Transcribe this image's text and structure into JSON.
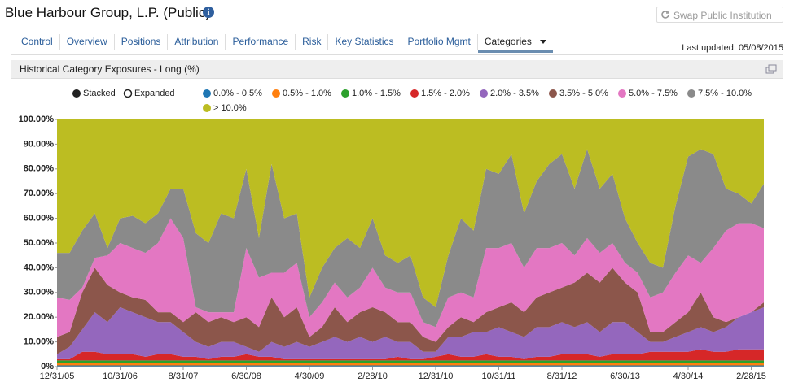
{
  "header": {
    "title": "Blue Harbour Group, L.P. (Public)",
    "button": "Swap Public Institution",
    "last_updated": "Last updated: 05/08/2015"
  },
  "tabs": [
    "Control",
    "Overview",
    "Positions",
    "Attribution",
    "Performance",
    "Risk",
    "Key Statistics",
    "Portfolio Mgmt",
    "Categories"
  ],
  "panel_title": "Historical Category Exposures - Long (%)",
  "chart_modes": [
    "Stacked",
    "Expanded"
  ],
  "chart_data": {
    "type": "stacked_area",
    "categories": [
      "12/31/05",
      null,
      null,
      null,
      null,
      "10/31/06",
      null,
      null,
      null,
      null,
      "8/31/07",
      null,
      null,
      null,
      null,
      "6/30/08",
      null,
      null,
      null,
      null,
      "4/30/09",
      null,
      null,
      null,
      null,
      "2/28/10",
      null,
      null,
      null,
      null,
      "12/31/10",
      null,
      null,
      null,
      null,
      "10/31/11",
      null,
      null,
      null,
      null,
      "8/31/12",
      null,
      null,
      null,
      null,
      "6/30/13",
      null,
      null,
      null,
      null,
      "4/30/14",
      null,
      null,
      null,
      null,
      "2/28/15",
      null
    ],
    "ylim": [
      0,
      100
    ],
    "yticks": [
      {
        "value": 0,
        "label": "0%"
      },
      {
        "value": 10,
        "label": "10.00%"
      },
      {
        "value": 20,
        "label": "20.00%"
      },
      {
        "value": 30,
        "label": "30.00%"
      },
      {
        "value": 40,
        "label": "40.00%"
      },
      {
        "value": 50,
        "label": "50.00%"
      },
      {
        "value": 60,
        "label": "60.00%"
      },
      {
        "value": 70,
        "label": "70.00%"
      },
      {
        "value": 80,
        "label": "80.00%"
      },
      {
        "value": 90,
        "label": "90.00%"
      },
      {
        "value": 100,
        "label": "100.00%"
      }
    ],
    "series": [
      {
        "name": "0.0% - 0.5%",
        "color": "#1f77b4",
        "values": [
          0.5,
          0.5,
          0.5,
          0.5,
          0.5,
          0.5,
          0.5,
          0.5,
          0.5,
          0.5,
          0.5,
          0.5,
          0.5,
          0.5,
          0.5,
          0.5,
          0.5,
          0.5,
          0.5,
          0.5,
          0.5,
          0.5,
          0.5,
          0.5,
          0.5,
          0.5,
          0.5,
          0.5,
          0.5,
          0.5,
          0.5,
          0.5,
          0.5,
          0.5,
          0.5,
          0.5,
          0.5,
          0.5,
          0.5,
          0.5,
          0.5,
          0.5,
          0.5,
          0.5,
          0.5,
          0.5,
          0.5,
          0.5,
          0.5,
          0.5,
          0.5,
          0.5,
          0.5,
          0.5,
          0.5,
          0.5,
          0.5
        ]
      },
      {
        "name": "0.5% - 1.0%",
        "color": "#ff7f0e",
        "values": [
          1,
          1,
          1,
          1,
          1,
          1,
          1,
          1,
          1,
          1,
          1,
          1,
          1,
          1,
          1,
          1,
          1,
          1,
          1,
          1,
          1,
          1,
          1,
          1,
          1,
          1,
          1,
          1,
          1,
          1,
          1,
          1,
          1,
          1,
          1,
          1,
          1,
          1,
          1,
          1,
          1,
          1,
          1,
          1,
          1,
          1,
          1,
          1,
          1,
          1,
          1,
          1,
          1,
          1,
          1,
          1,
          1
        ]
      },
      {
        "name": "1.0% - 1.5%",
        "color": "#2ca02c",
        "values": [
          1,
          1,
          1,
          1,
          1,
          1,
          1,
          1,
          1,
          1,
          1,
          1,
          1,
          1,
          1,
          1,
          1,
          1,
          1,
          1,
          1,
          1,
          1,
          1,
          1,
          1,
          1,
          1,
          1,
          1,
          1,
          1,
          1,
          1,
          1,
          1,
          1,
          1,
          1,
          1,
          1,
          1,
          1,
          1,
          1,
          1,
          1,
          1,
          1,
          1,
          1,
          1,
          1,
          1,
          1,
          1,
          1
        ]
      },
      {
        "name": "1.5% - 2.0%",
        "color": "#d62728",
        "values": [
          0.5,
          0.5,
          3.5,
          3.5,
          2.5,
          2.5,
          2.5,
          1.5,
          2.5,
          2.5,
          1.5,
          1.5,
          0.5,
          1.5,
          1.5,
          2.5,
          1.5,
          1.5,
          0.5,
          0.5,
          0.5,
          0.5,
          0.5,
          0.5,
          0.5,
          0.5,
          0.5,
          1.5,
          0.5,
          0.5,
          1.5,
          2.5,
          1.5,
          1.5,
          2.5,
          1.5,
          1.5,
          0.5,
          1.5,
          1.5,
          2.5,
          2.5,
          2.5,
          1.5,
          2.5,
          2.5,
          2.5,
          3.5,
          3.5,
          3.5,
          3.5,
          4.5,
          3.5,
          3.5,
          4.5,
          4.5,
          4.5
        ]
      },
      {
        "name": "2.0% - 3.5%",
        "color": "#9467bd",
        "values": [
          2,
          5,
          9,
          16,
          13,
          19,
          17,
          16,
          13,
          13,
          10,
          6,
          5,
          6,
          6,
          3,
          2,
          6,
          5,
          7,
          5,
          7,
          9,
          7,
          9,
          7,
          9,
          6,
          7,
          3,
          2,
          7,
          8,
          10,
          9,
          12,
          10,
          9,
          12,
          12,
          13,
          11,
          13,
          10,
          13,
          13,
          9,
          4,
          4,
          6,
          8,
          9,
          8,
          10,
          13,
          15,
          17
        ]
      },
      {
        "name": "3.5% - 5.0%",
        "color": "#8c564b",
        "values": [
          7,
          6,
          15,
          18,
          15,
          6,
          6,
          7,
          4,
          4,
          4,
          12,
          10,
          10,
          8,
          12,
          10,
          18,
          12,
          14,
          4,
          6,
          12,
          8,
          10,
          14,
          10,
          8,
          8,
          6,
          4,
          4,
          8,
          4,
          8,
          8,
          12,
          10,
          12,
          14,
          14,
          18,
          20,
          20,
          22,
          16,
          16,
          4,
          4,
          6,
          8,
          14,
          6,
          2,
          0,
          0,
          2
        ]
      },
      {
        "name": "5.0% - 7.5%",
        "color": "#e377c2",
        "values": [
          16,
          13,
          2,
          4,
          12,
          20,
          20,
          19,
          28,
          38,
          34,
          2,
          4,
          2,
          4,
          28,
          20,
          10,
          18,
          18,
          8,
          10,
          10,
          10,
          10,
          16,
          10,
          12,
          12,
          6,
          6,
          12,
          10,
          10,
          26,
          24,
          24,
          18,
          20,
          18,
          18,
          11,
          14,
          12,
          10,
          8,
          8,
          14,
          16,
          20,
          23,
          12,
          28,
          37,
          38,
          36,
          30
        ]
      },
      {
        "name": "7.5% - 10.0%",
        "color": "#8a8a8a",
        "values": [
          18,
          19,
          23,
          18,
          3,
          10,
          13,
          12,
          12,
          12,
          20,
          30,
          28,
          40,
          38,
          32,
          16,
          44,
          22,
          20,
          8,
          14,
          14,
          24,
          16,
          20,
          13,
          12,
          15,
          10,
          8,
          17,
          30,
          27,
          32,
          30,
          36,
          22,
          27,
          34,
          36,
          27,
          36,
          26,
          28,
          18,
          12,
          14,
          10,
          27,
          40,
          46,
          38,
          17,
          12,
          8,
          18
        ]
      },
      {
        "name": "> 10.0%",
        "color": "#bcbd22",
        "values": [
          54,
          54,
          45,
          38,
          52,
          40,
          39,
          42,
          38,
          28,
          28,
          46,
          50,
          38,
          40,
          20,
          48,
          18,
          40,
          38,
          72,
          60,
          52,
          48,
          52,
          40,
          55,
          58,
          55,
          72,
          76,
          55,
          40,
          45,
          20,
          22,
          14,
          38,
          25,
          18,
          14,
          28,
          12,
          28,
          22,
          40,
          50,
          58,
          60,
          35,
          15,
          12,
          14,
          28,
          30,
          34,
          26
        ]
      }
    ]
  }
}
